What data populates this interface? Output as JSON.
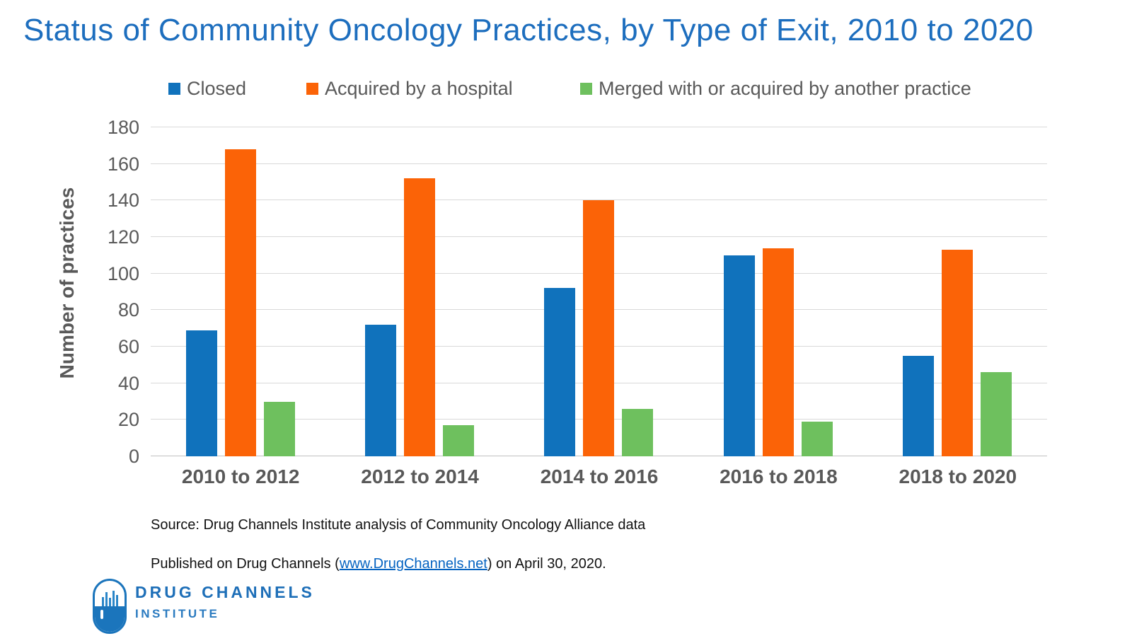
{
  "title": "Status of Community Oncology Practices, by Type of Exit, 2010 to 2020",
  "chart_data": {
    "type": "bar",
    "categories": [
      "2010 to 2012",
      "2012 to 2014",
      "2014 to 2016",
      "2016 to 2018",
      "2018 to 2020"
    ],
    "series": [
      {
        "name": "Closed",
        "color": "#1072bc",
        "values": [
          69,
          72,
          92,
          110,
          55
        ]
      },
      {
        "name": "Acquired by a hospital",
        "color": "#fb6307",
        "values": [
          168,
          152,
          140,
          114,
          113
        ]
      },
      {
        "name": "Merged with or acquired by another practice",
        "color": "#6ec05e",
        "values": [
          30,
          17,
          26,
          19,
          46
        ]
      }
    ],
    "title": "Status of Community Oncology Practices, by Type of Exit, 2010 to 2020",
    "xlabel": "",
    "ylabel": "Number of practices",
    "ylim": [
      0,
      180
    ],
    "ytick_step": 20,
    "grid": true,
    "legend_position": "top"
  },
  "footer": {
    "source": "Source: Drug Channels Institute analysis of Community Oncology Alliance data",
    "published_prefix": "Published on Drug Channels (",
    "published_link": "www.DrugChannels.net",
    "published_suffix": ") on April 30, 2020."
  },
  "logo": {
    "line1": "DRUG CHANNELS",
    "line2": "INSTITUTE"
  },
  "colors": {
    "title_blue": "#1d6ebe",
    "axis_gray": "#595959",
    "gridline": "#d9d9d9",
    "link_blue": "#0563c1",
    "logo_blue": "#1b75bc"
  }
}
